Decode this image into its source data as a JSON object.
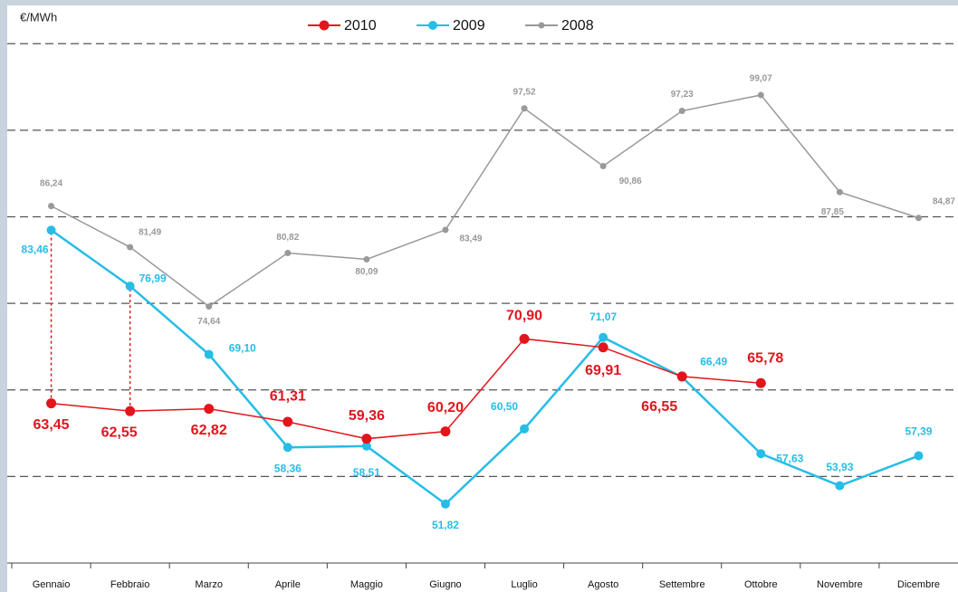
{
  "chart_data": {
    "type": "line",
    "y_label": "€/MWh",
    "categories": [
      "Gennaio",
      "Febbraio",
      "Marzo",
      "Aprile",
      "Maggio",
      "Giugno",
      "Luglio",
      "Agosto",
      "Settembre",
      "Ottobre",
      "Novembre",
      "Dicembre"
    ],
    "series": [
      {
        "name": "2010",
        "color": "#e3141b",
        "values": [
          63.45,
          62.55,
          62.82,
          61.31,
          59.36,
          60.2,
          70.9,
          69.91,
          66.55,
          65.78,
          null,
          null
        ],
        "value_labels": [
          "63,45",
          "62,55",
          "62,82",
          "61,31",
          "59,36",
          "60,20",
          "70,90",
          "69,91",
          "66,55",
          "65,78",
          null,
          null
        ]
      },
      {
        "name": "2009",
        "color": "#26bde6",
        "values": [
          83.46,
          76.99,
          69.1,
          58.36,
          58.51,
          51.82,
          60.5,
          71.07,
          66.49,
          57.63,
          53.93,
          57.39
        ],
        "value_labels": [
          "83,46",
          "76,99",
          "69,10",
          "58,36",
          "58,51",
          "51,82",
          "60,50",
          "71,07",
          "66,49",
          "57,63",
          "53,93",
          "57,39"
        ]
      },
      {
        "name": "2008",
        "color": "#999999",
        "values": [
          86.24,
          81.49,
          74.64,
          80.82,
          80.09,
          83.49,
          97.52,
          90.86,
          97.23,
          99.07,
          87.85,
          84.87
        ],
        "value_labels": [
          "86,24",
          "81,49",
          "74,64",
          "80,82",
          "80,09",
          "83,49",
          "97,52",
          "90,86",
          "97,23",
          "99,07",
          "87,85",
          "84,87"
        ]
      }
    ],
    "ylim": [
      45,
      109
    ],
    "gridlines": [
      55,
      65,
      75,
      85,
      95,
      105
    ]
  }
}
